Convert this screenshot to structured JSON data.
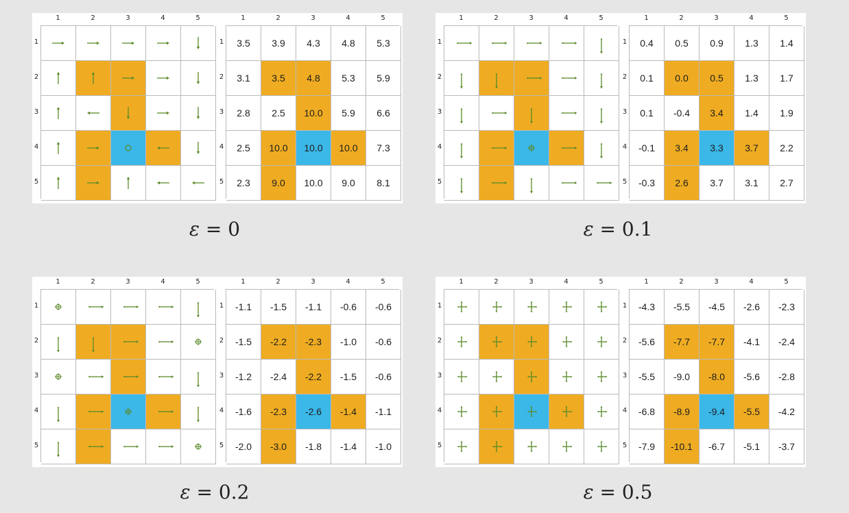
{
  "colors": {
    "forbidden": "#efac22",
    "target": "#3bb7e8",
    "arrow": "#5a8a2a"
  },
  "col_labels": [
    "1",
    "2",
    "3",
    "4",
    "5"
  ],
  "row_labels": [
    "1",
    "2",
    "3",
    "4",
    "5"
  ],
  "cell_types": [
    [
      "empty",
      "empty",
      "empty",
      "empty",
      "empty"
    ],
    [
      "empty",
      "forbidden",
      "forbidden",
      "empty",
      "empty"
    ],
    [
      "empty",
      "empty",
      "forbidden",
      "empty",
      "empty"
    ],
    [
      "empty",
      "forbidden",
      "target",
      "forbidden",
      "empty"
    ],
    [
      "empty",
      "forbidden",
      "empty",
      "empty",
      "empty"
    ]
  ],
  "panels": [
    {
      "epsilon_symbol": "ε",
      "epsilon_eq": "= 0",
      "policy": [
        [
          "right",
          "right",
          "right",
          "right",
          "down"
        ],
        [
          "up",
          "up",
          "right",
          "right",
          "down"
        ],
        [
          "up",
          "left",
          "down",
          "right",
          "down"
        ],
        [
          "up",
          "right",
          "stay",
          "left",
          "down"
        ],
        [
          "up",
          "right",
          "up",
          "left",
          "left"
        ]
      ],
      "values": [
        [
          "3.5",
          "3.9",
          "4.3",
          "4.8",
          "5.3"
        ],
        [
          "3.1",
          "3.5",
          "4.8",
          "5.3",
          "5.9"
        ],
        [
          "2.8",
          "2.5",
          "10.0",
          "5.9",
          "6.6"
        ],
        [
          "2.5",
          "10.0",
          "10.0",
          "10.0",
          "7.3"
        ],
        [
          "2.3",
          "9.0",
          "10.0",
          "9.0",
          "8.1"
        ]
      ]
    },
    {
      "epsilon_symbol": "ε",
      "epsilon_eq": "= 0.1",
      "policy": [
        [
          "lr",
          "lr",
          "lr",
          "lr",
          "ud"
        ],
        [
          "ud",
          "ud",
          "lr",
          "lr",
          "ud"
        ],
        [
          "ud",
          "lr",
          "ud",
          "lr",
          "ud"
        ],
        [
          "ud",
          "lr",
          "circ",
          "lr",
          "ud"
        ],
        [
          "ud",
          "lr",
          "ud",
          "lr",
          "lr"
        ]
      ],
      "values": [
        [
          "0.4",
          "0.5",
          "0.9",
          "1.3",
          "1.4"
        ],
        [
          "0.1",
          "0.0",
          "0.5",
          "1.3",
          "1.7"
        ],
        [
          "0.1",
          "-0.4",
          "3.4",
          "1.4",
          "1.9"
        ],
        [
          "-0.1",
          "3.4",
          "3.3",
          "3.7",
          "2.2"
        ],
        [
          "-0.3",
          "2.6",
          "3.7",
          "3.1",
          "2.7"
        ]
      ]
    },
    {
      "epsilon_symbol": "ε",
      "epsilon_eq": "= 0.2",
      "policy": [
        [
          "circ",
          "lr",
          "lr",
          "lr",
          "ud"
        ],
        [
          "ud",
          "ud",
          "lr",
          "lr",
          "circ"
        ],
        [
          "circ",
          "lr",
          "lr",
          "lr",
          "ud"
        ],
        [
          "ud",
          "lr",
          "circ",
          "lr",
          "ud"
        ],
        [
          "ud",
          "lr",
          "lr",
          "lr",
          "circ"
        ]
      ],
      "values": [
        [
          "-1.1",
          "-1.5",
          "-1.1",
          "-0.6",
          "-0.6"
        ],
        [
          "-1.5",
          "-2.2",
          "-2.3",
          "-1.0",
          "-0.6"
        ],
        [
          "-1.2",
          "-2.4",
          "-2.2",
          "-1.5",
          "-0.6"
        ],
        [
          "-1.6",
          "-2.3",
          "-2.6",
          "-1.4",
          "-1.1"
        ],
        [
          "-2.0",
          "-3.0",
          "-1.8",
          "-1.4",
          "-1.0"
        ]
      ]
    },
    {
      "epsilon_symbol": "ε",
      "epsilon_eq": "= 0.5",
      "policy": [
        [
          "all",
          "all",
          "all",
          "all",
          "all"
        ],
        [
          "all",
          "all",
          "all",
          "all",
          "all"
        ],
        [
          "all",
          "all",
          "all",
          "all",
          "all"
        ],
        [
          "all",
          "all",
          "all",
          "all",
          "all"
        ],
        [
          "all",
          "all",
          "all",
          "all",
          "all"
        ]
      ],
      "values": [
        [
          "-4.3",
          "-5.5",
          "-4.5",
          "-2.6",
          "-2.3"
        ],
        [
          "-5.6",
          "-7.7",
          "-7.7",
          "-4.1",
          "-2.4"
        ],
        [
          "-5.5",
          "-9.0",
          "-8.0",
          "-5.6",
          "-2.8"
        ],
        [
          "-6.8",
          "-8.9",
          "-9.4",
          "-5.5",
          "-4.2"
        ],
        [
          "-7.9",
          "-10.1",
          "-6.7",
          "-5.1",
          "-3.7"
        ]
      ]
    }
  ]
}
